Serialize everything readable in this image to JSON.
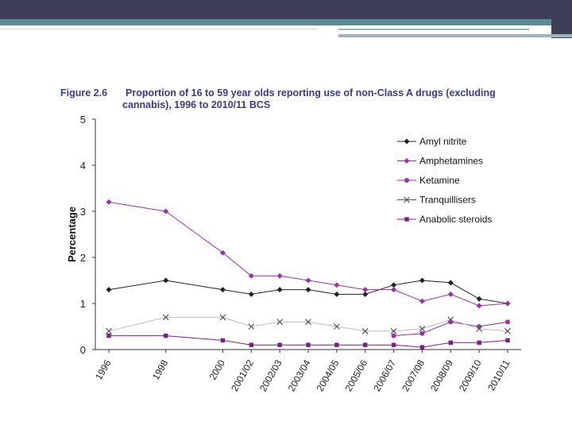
{
  "slide": {
    "accent_dark": "#3c3f55",
    "accent_teal": "#5a8a96"
  },
  "figure": {
    "number": "Figure 2.6",
    "title_line1": "Proportion of 16 to 59 year olds reporting use of non-Class A drugs (excluding",
    "title_line2": "cannabis), 1996 to 2010/11 BCS"
  },
  "chart_data": {
    "type": "line",
    "title": "Proportion of 16 to 59 year olds reporting use of non-Class A drugs (excluding cannabis), 1996 to 2010/11 BCS",
    "ylabel": "Percentage",
    "xlabel": "",
    "ylim": [
      0,
      5
    ],
    "yticks": [
      0,
      1,
      2,
      3,
      4,
      5
    ],
    "grid": false,
    "legend_position": "top-right",
    "x": [
      "1996",
      "1998",
      "2000",
      "2001/02",
      "2002/03",
      "2003/04",
      "2004/05",
      "2005/06",
      "2006/07",
      "2007/08",
      "2008/09",
      "2009/10",
      "2010/11"
    ],
    "x_positions": [
      0,
      2,
      4,
      5,
      6,
      7,
      8,
      9,
      10,
      11,
      12,
      13,
      14
    ],
    "series": [
      {
        "name": "Amyl nitrite",
        "marker": "diamond",
        "color": "#222222",
        "values": [
          1.3,
          1.5,
          1.3,
          1.2,
          1.3,
          1.3,
          1.2,
          1.2,
          1.4,
          1.5,
          1.45,
          1.1,
          1.0
        ]
      },
      {
        "name": "Amphetamines",
        "marker": "diamond",
        "color": "#9b30a8",
        "values": [
          3.2,
          3.0,
          2.1,
          1.6,
          1.6,
          1.5,
          1.4,
          1.3,
          1.3,
          1.05,
          1.2,
          0.95,
          1.0
        ]
      },
      {
        "name": "Ketamine",
        "marker": "circle",
        "color": "#9b30a8",
        "values": [
          null,
          null,
          null,
          null,
          null,
          null,
          null,
          null,
          0.3,
          0.35,
          0.6,
          0.5,
          0.6
        ]
      },
      {
        "name": "Tranquillisers",
        "marker": "x",
        "color": "#555555",
        "values": [
          0.4,
          0.7,
          0.7,
          0.5,
          0.6,
          0.6,
          0.5,
          0.4,
          0.4,
          0.45,
          0.65,
          0.45,
          0.4
        ]
      },
      {
        "name": "Anabolic steroids",
        "marker": "square",
        "color": "#7a1f86",
        "values": [
          0.3,
          0.3,
          0.2,
          0.1,
          0.1,
          0.1,
          0.1,
          0.1,
          0.1,
          0.05,
          0.15,
          0.15,
          0.2
        ]
      }
    ]
  }
}
